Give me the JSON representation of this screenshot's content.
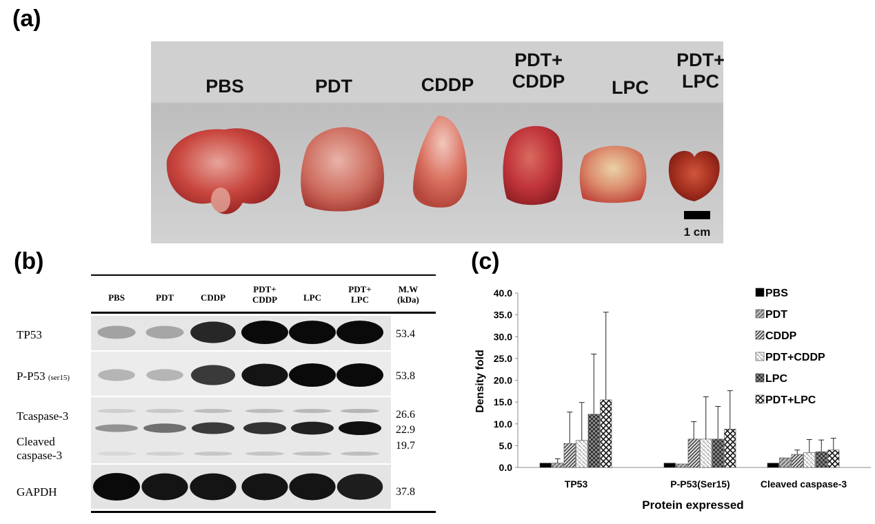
{
  "panels": {
    "a": "(a)",
    "b": "(b)",
    "c": "(c)"
  },
  "photo": {
    "groups": [
      "PBS",
      "PDT",
      "CDDP",
      "PDT+ CDDP",
      "LPC",
      "PDT+ LPC"
    ],
    "labels": [
      {
        "lines": [
          "PBS"
        ]
      },
      {
        "lines": [
          "PDT"
        ]
      },
      {
        "lines": [
          "CDDP"
        ]
      },
      {
        "lines": [
          "PDT+",
          "CDDP"
        ]
      },
      {
        "lines": [
          "LPC"
        ]
      },
      {
        "lines": [
          "PDT+",
          "LPC"
        ]
      }
    ],
    "scale_label": "1 cm",
    "background_color": "#d0d0d0",
    "tumor_color": "#c8463c"
  },
  "blot": {
    "columns": [
      {
        "lines": [
          "PBS"
        ]
      },
      {
        "lines": [
          "PDT"
        ]
      },
      {
        "lines": [
          "CDDP"
        ]
      },
      {
        "lines": [
          "PDT+",
          "CDDP"
        ]
      },
      {
        "lines": [
          "LPC"
        ]
      },
      {
        "lines": [
          "PDT+",
          "LPC"
        ]
      }
    ],
    "mw_header": [
      "M.W",
      "(kDa)"
    ],
    "rows": [
      {
        "label": "TP53",
        "sub": "",
        "mw": [
          "53.4"
        ],
        "intensity": [
          0.2,
          0.18,
          0.85,
          1.0,
          1.0,
          1.0
        ]
      },
      {
        "label": "P-P53",
        "sub": "(ser15)",
        "mw": [
          "53.8"
        ],
        "intensity": [
          0.1,
          0.1,
          0.75,
          0.95,
          1.0,
          1.0
        ]
      },
      {
        "label": "Tcaspase-3",
        "sub": "",
        "mw": [
          "26.6",
          "22.9",
          "19.7"
        ],
        "intensity": [
          0.25,
          0.45,
          0.75,
          0.8,
          0.9,
          1.0
        ]
      },
      {
        "label": "GAPDH",
        "sub": "",
        "mw": [
          "37.8"
        ],
        "intensity": [
          1.0,
          0.95,
          0.95,
          0.95,
          0.95,
          0.9
        ]
      }
    ],
    "cleaved_label": [
      "Cleaved",
      "caspase-3"
    ]
  },
  "chart_data": {
    "type": "bar",
    "title": "",
    "xlabel": "Protein expressed",
    "ylabel": "Density fold",
    "categories": [
      "TP53",
      "P-P53(Ser15)",
      "Cleaved caspase-3"
    ],
    "ylim": [
      0,
      40
    ],
    "yticks": [
      "0.0",
      "5.0",
      "10.0",
      "15.0",
      "20.0",
      "25.0",
      "30.0",
      "35.0",
      "40.0"
    ],
    "legend_position": "right",
    "series": [
      {
        "name": "PBS",
        "values": [
          1.0,
          1.0,
          1.0
        ],
        "errors": [
          0.0,
          0.0,
          0.0
        ]
      },
      {
        "name": "PDT",
        "values": [
          1.0,
          0.8,
          2.2
        ],
        "errors": [
          1.0,
          0.0,
          0.0
        ]
      },
      {
        "name": "CDDP",
        "values": [
          5.5,
          6.5,
          3.0
        ],
        "errors": [
          7.2,
          4.0,
          1.0
        ]
      },
      {
        "name": "PDT+CDDP",
        "values": [
          6.2,
          6.5,
          3.4
        ],
        "errors": [
          8.7,
          9.7,
          3.0
        ]
      },
      {
        "name": "LPC",
        "values": [
          12.2,
          6.5,
          3.6
        ],
        "errors": [
          13.8,
          7.5,
          2.7
        ]
      },
      {
        "name": "PDT+LPC",
        "values": [
          15.5,
          8.8,
          4.0
        ],
        "errors": [
          20.1,
          8.8,
          2.7
        ]
      }
    ]
  }
}
